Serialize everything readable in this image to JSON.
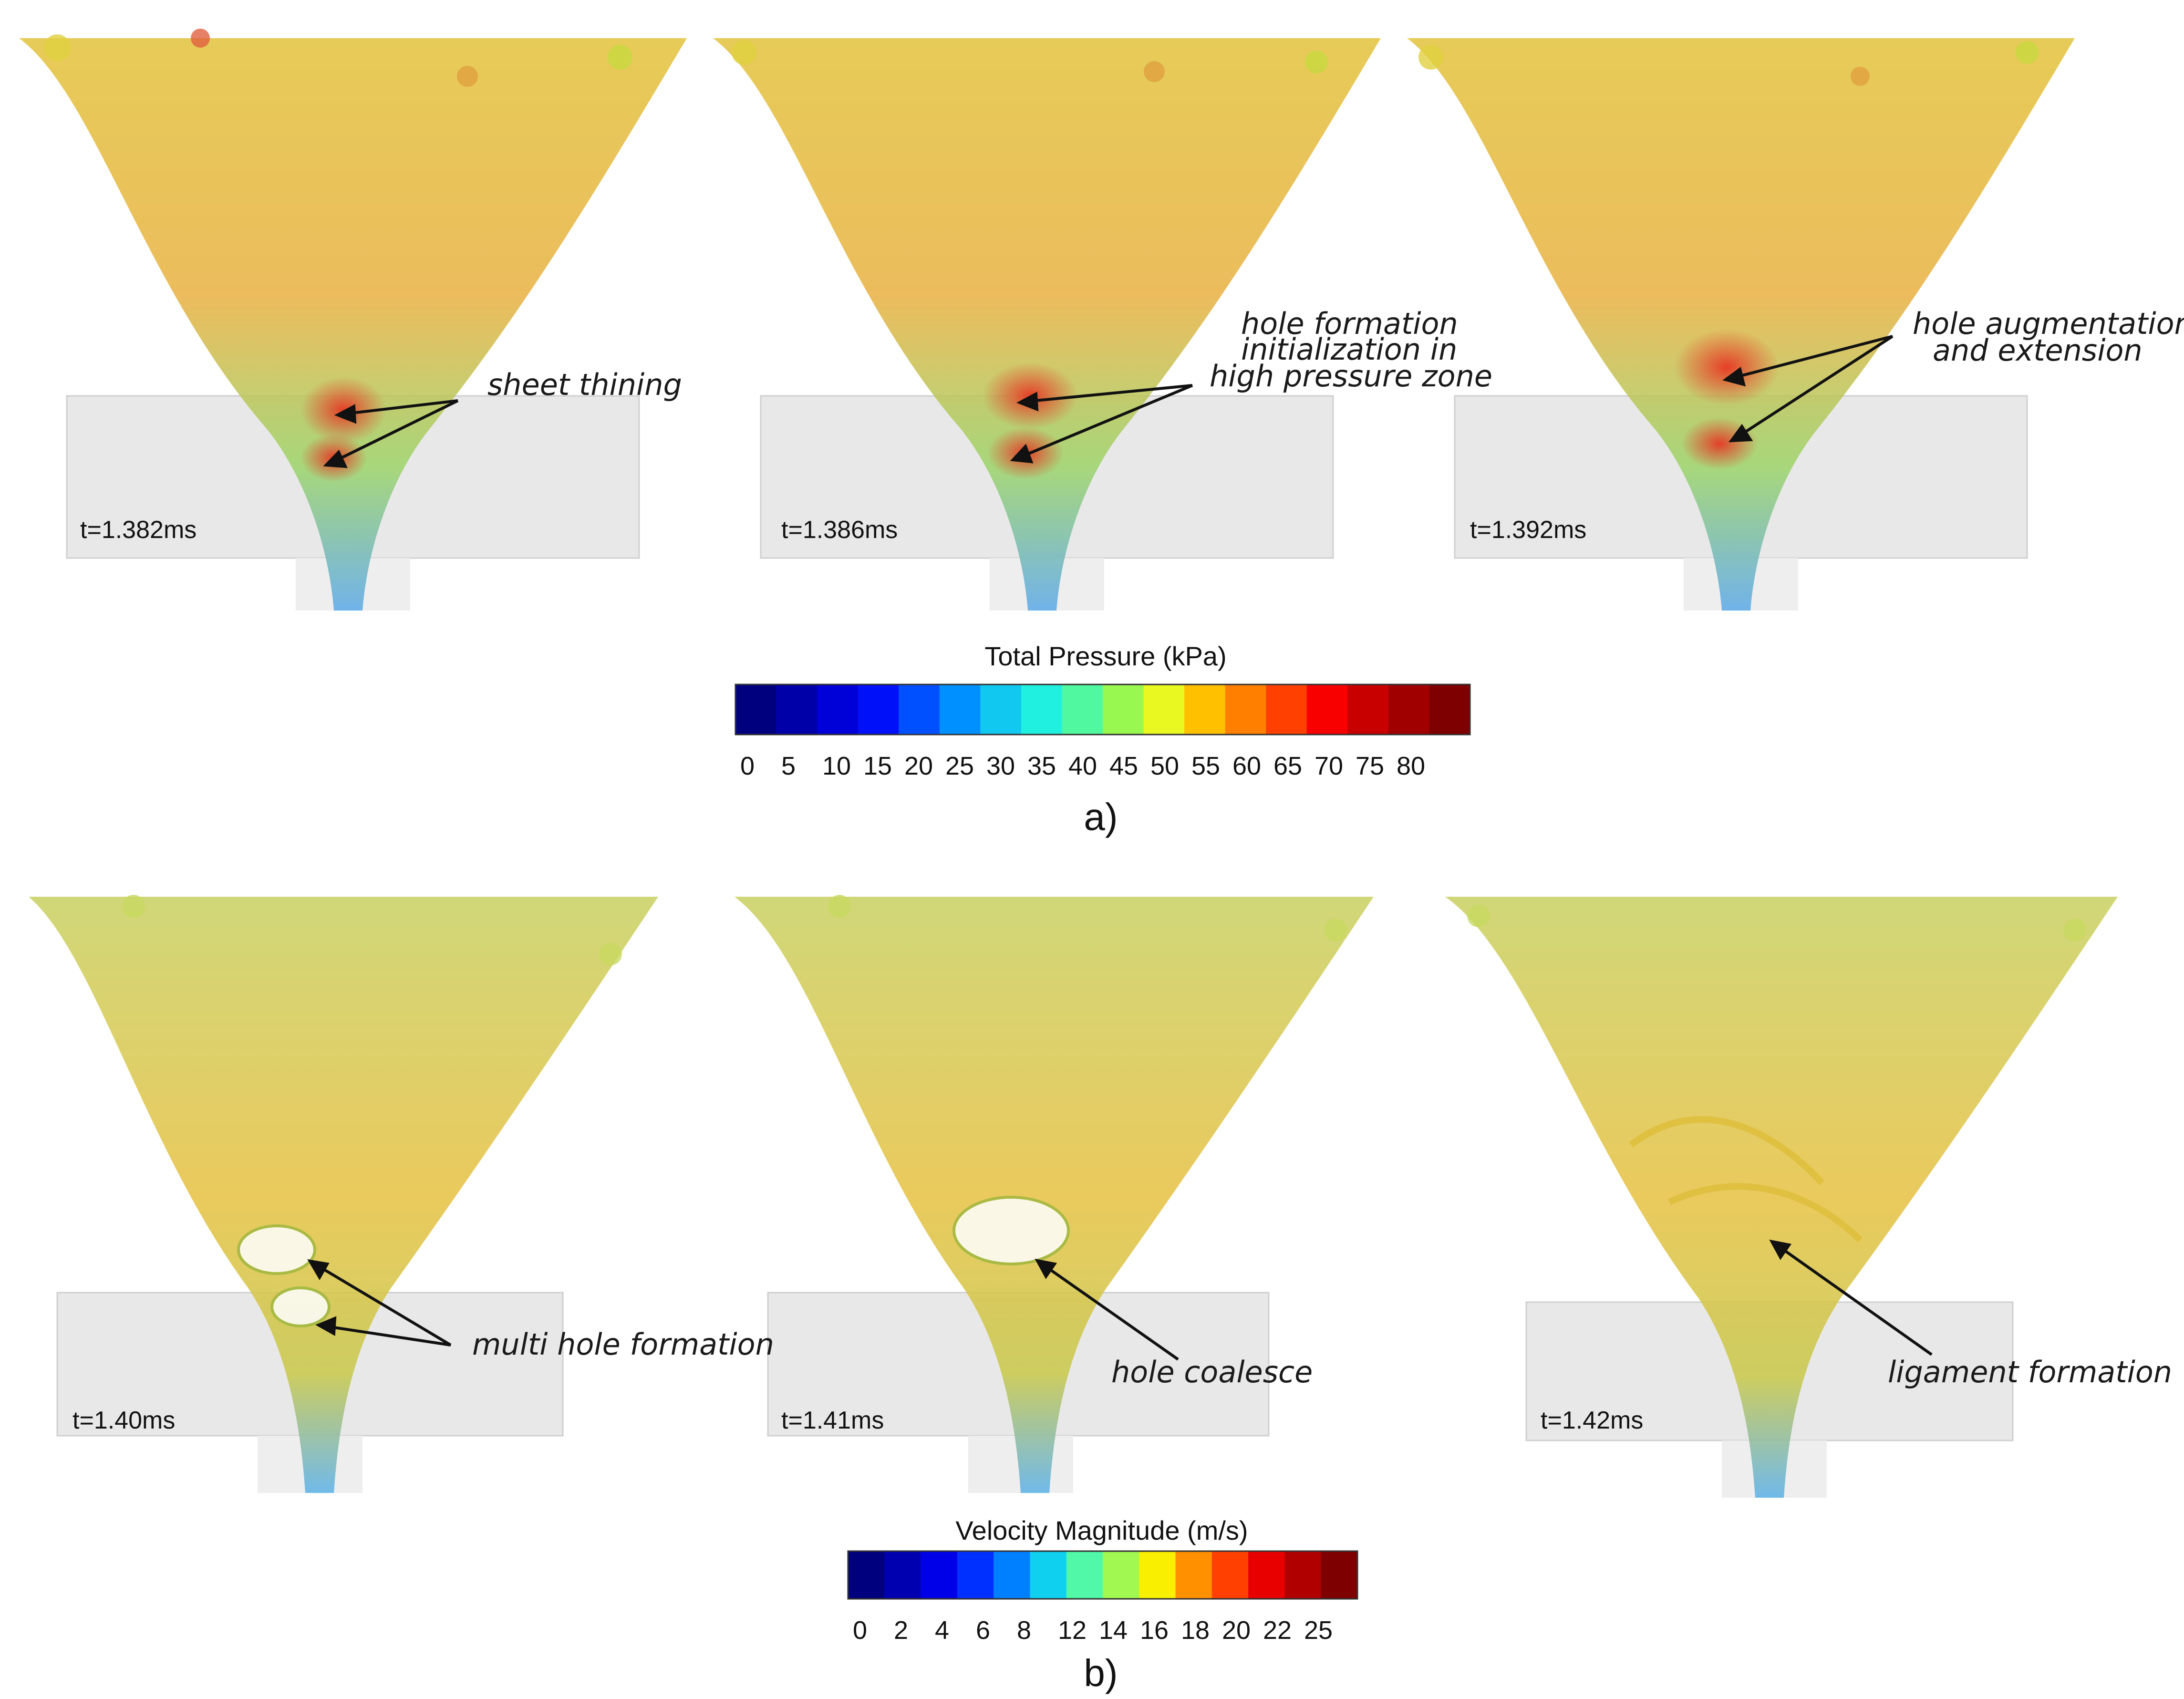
{
  "figure": {
    "part_a": {
      "label": "a)",
      "panels": [
        {
          "time": "t=1.382ms",
          "annotations": [
            "sheet thining"
          ]
        },
        {
          "time": "t=1.386ms",
          "annotations": [
            "hole formation",
            "initialization in",
            "high pressure zone"
          ]
        },
        {
          "time": "t=1.392ms",
          "annotations": [
            "hole augmentation",
            "and extension"
          ]
        }
      ],
      "colorbar": {
        "title": "Total Pressure (kPa)",
        "ticks": [
          "0",
          "5",
          "10",
          "15",
          "20",
          "25",
          "30",
          "35",
          "40",
          "45",
          "50",
          "55",
          "60",
          "65",
          "70",
          "75",
          "80"
        ],
        "colors": [
          "#00007f",
          "#0000a8",
          "#0000d8",
          "#0010f8",
          "#0050ff",
          "#0090ff",
          "#10c8f0",
          "#20f0e0",
          "#50f8a0",
          "#98f850",
          "#e8f820",
          "#ffc000",
          "#ff8000",
          "#ff4000",
          "#f80000",
          "#c80000",
          "#a00000",
          "#7f0000"
        ]
      }
    },
    "part_b": {
      "label": "b)",
      "panels": [
        {
          "time": "t=1.40ms",
          "annotations": [
            "multi hole formation"
          ]
        },
        {
          "time": "t=1.41ms",
          "annotations": [
            "hole coalesce"
          ]
        },
        {
          "time": "t=1.42ms",
          "annotations": [
            "ligament formation"
          ]
        }
      ],
      "colorbar": {
        "title": "Velocity Magnitude (m/s)",
        "ticks": [
          "0",
          "2",
          "4",
          "6",
          "8",
          "12",
          "14",
          "16",
          "18",
          "20",
          "22",
          "25"
        ],
        "colors": [
          "#00007f",
          "#0000b0",
          "#0000e8",
          "#0030ff",
          "#0080ff",
          "#10d0f0",
          "#50f8a8",
          "#a0f850",
          "#f8f000",
          "#ff9000",
          "#ff4000",
          "#e80000",
          "#b00000",
          "#7f0000"
        ]
      }
    }
  }
}
